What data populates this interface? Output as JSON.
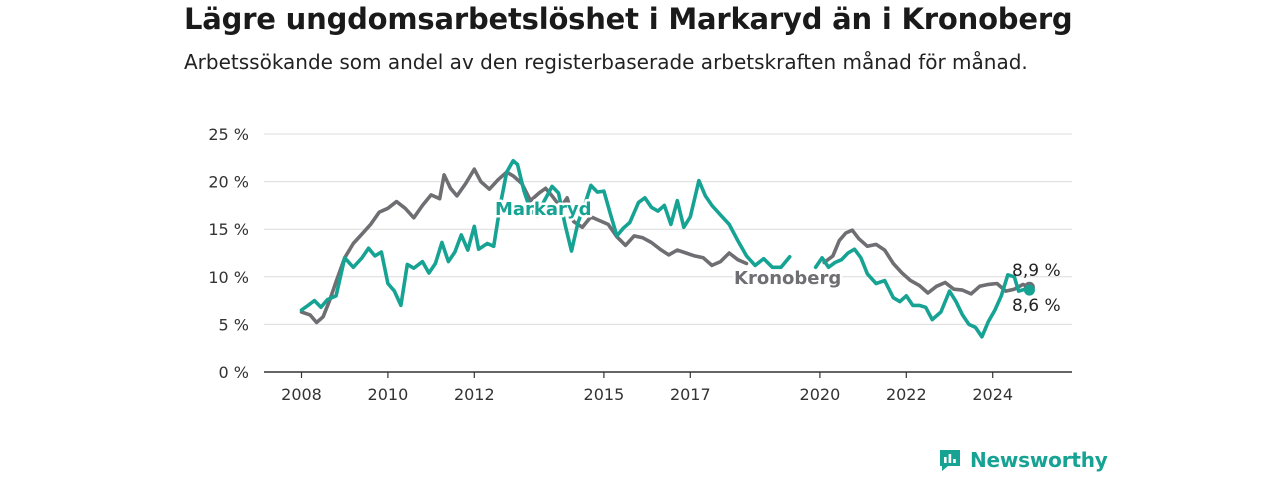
{
  "title": "Lägre ungdomsarbetslöshet i Markaryd än i Kronoberg",
  "subtitle": "Arbetssökande som andel av den registerbaserade arbetskraften månad för månad.",
  "brand": {
    "name": "Newsworthy",
    "icon": "newsworthy-logo-icon"
  },
  "colors": {
    "markaryd": "#16a393",
    "kronoberg": "#6e6e73",
    "grid": "#dcdcdc",
    "axis": "#333333"
  },
  "chart_data": {
    "type": "line",
    "title": "Lägre ungdomsarbetslöshet i Markaryd än i Kronoberg",
    "xlabel": "",
    "ylabel": "",
    "xlim": [
      2008,
      2025.4
    ],
    "ylim": [
      0,
      25
    ],
    "y_ticks": [
      0,
      5,
      10,
      15,
      20,
      25
    ],
    "y_tick_labels": [
      "0 %",
      "5 %",
      "10 %",
      "15 %",
      "20 %",
      "25 %"
    ],
    "x_ticks": [
      2008,
      2010,
      2012,
      2015,
      2017,
      2020,
      2022,
      2024
    ],
    "x_tick_labels": [
      "2008",
      "2010",
      "2012",
      "2015",
      "2017",
      "2020",
      "2022",
      "2024"
    ],
    "grid": true,
    "series": [
      {
        "name": "Kronoberg",
        "label_text": "Kronoberg",
        "end_label": "8,9 %",
        "points": [
          [
            2008.0,
            6.3
          ],
          [
            2008.2,
            6.0
          ],
          [
            2008.35,
            5.2
          ],
          [
            2008.5,
            5.8
          ],
          [
            2008.65,
            7.5
          ],
          [
            2008.8,
            9.5
          ],
          [
            2009.0,
            12.0
          ],
          [
            2009.2,
            13.5
          ],
          [
            2009.4,
            14.5
          ],
          [
            2009.6,
            15.5
          ],
          [
            2009.8,
            16.8
          ],
          [
            2010.0,
            17.2
          ],
          [
            2010.2,
            17.9
          ],
          [
            2010.4,
            17.2
          ],
          [
            2010.6,
            16.2
          ],
          [
            2010.8,
            17.5
          ],
          [
            2011.0,
            18.6
          ],
          [
            2011.2,
            18.2
          ],
          [
            2011.3,
            20.7
          ],
          [
            2011.45,
            19.3
          ],
          [
            2011.6,
            18.5
          ],
          [
            2011.8,
            19.8
          ],
          [
            2012.0,
            21.3
          ],
          [
            2012.15,
            20.0
          ],
          [
            2012.35,
            19.2
          ],
          [
            2012.55,
            20.2
          ],
          [
            2012.75,
            21.0
          ],
          [
            2012.9,
            20.6
          ],
          [
            2013.1,
            19.8
          ],
          [
            2013.3,
            18.0
          ],
          [
            2013.5,
            18.8
          ],
          [
            2013.65,
            19.3
          ],
          [
            2013.8,
            18.5
          ],
          [
            2014.0,
            17.3
          ],
          [
            2014.15,
            18.3
          ],
          [
            2014.3,
            15.8
          ],
          [
            2014.5,
            15.2
          ],
          [
            2014.7,
            16.3
          ],
          [
            2014.9,
            15.9
          ],
          [
            2015.1,
            15.5
          ],
          [
            2015.3,
            14.2
          ],
          [
            2015.5,
            13.3
          ],
          [
            2015.7,
            14.3
          ],
          [
            2015.9,
            14.1
          ],
          [
            2016.1,
            13.6
          ],
          [
            2016.3,
            12.9
          ],
          [
            2016.5,
            12.3
          ],
          [
            2016.7,
            12.8
          ],
          [
            2016.9,
            12.5
          ],
          [
            2017.1,
            12.2
          ],
          [
            2017.3,
            12.0
          ],
          [
            2017.5,
            11.2
          ],
          [
            2017.7,
            11.6
          ],
          [
            2017.9,
            12.5
          ],
          [
            2018.1,
            11.8
          ],
          [
            2018.3,
            11.4
          ],
          null,
          [
            2020.1,
            11.5
          ],
          [
            2020.3,
            12.2
          ],
          [
            2020.45,
            13.8
          ],
          [
            2020.6,
            14.6
          ],
          [
            2020.75,
            14.9
          ],
          [
            2020.9,
            14.0
          ],
          [
            2021.1,
            13.2
          ],
          [
            2021.3,
            13.4
          ],
          [
            2021.5,
            12.8
          ],
          [
            2021.7,
            11.4
          ],
          [
            2021.9,
            10.4
          ],
          [
            2022.1,
            9.6
          ],
          [
            2022.3,
            9.1
          ],
          [
            2022.5,
            8.3
          ],
          [
            2022.7,
            9.0
          ],
          [
            2022.9,
            9.4
          ],
          [
            2023.1,
            8.7
          ],
          [
            2023.3,
            8.6
          ],
          [
            2023.5,
            8.2
          ],
          [
            2023.7,
            9.0
          ],
          [
            2023.9,
            9.2
          ],
          [
            2024.1,
            9.3
          ],
          [
            2024.3,
            8.5
          ],
          [
            2024.5,
            8.7
          ],
          [
            2024.7,
            9.2
          ],
          [
            2024.85,
            8.9
          ]
        ]
      },
      {
        "name": "Markaryd",
        "label_text": "Markaryd",
        "end_label": "8,6 %",
        "points": [
          [
            2008.0,
            6.5
          ],
          [
            2008.15,
            7.0
          ],
          [
            2008.3,
            7.5
          ],
          [
            2008.45,
            6.8
          ],
          [
            2008.6,
            7.6
          ],
          [
            2008.8,
            8.0
          ],
          [
            2009.0,
            12.0
          ],
          [
            2009.2,
            11.0
          ],
          [
            2009.4,
            12.0
          ],
          [
            2009.55,
            13.0
          ],
          [
            2009.7,
            12.2
          ],
          [
            2009.85,
            12.6
          ],
          [
            2010.0,
            9.3
          ],
          [
            2010.15,
            8.5
          ],
          [
            2010.3,
            7.0
          ],
          [
            2010.45,
            11.3
          ],
          [
            2010.6,
            10.9
          ],
          [
            2010.8,
            11.6
          ],
          [
            2010.95,
            10.4
          ],
          [
            2011.1,
            11.4
          ],
          [
            2011.25,
            13.6
          ],
          [
            2011.4,
            11.6
          ],
          [
            2011.55,
            12.6
          ],
          [
            2011.7,
            14.4
          ],
          [
            2011.85,
            12.8
          ],
          [
            2012.0,
            15.3
          ],
          [
            2012.1,
            12.9
          ],
          [
            2012.3,
            13.5
          ],
          [
            2012.45,
            13.2
          ],
          [
            2012.6,
            17.5
          ],
          [
            2012.75,
            21.0
          ],
          [
            2012.9,
            22.2
          ],
          [
            2013.0,
            21.8
          ],
          [
            2013.15,
            19.0
          ],
          [
            2013.3,
            17.0
          ],
          [
            2013.45,
            16.4
          ],
          [
            2013.6,
            17.8
          ],
          [
            2013.8,
            19.5
          ],
          [
            2013.95,
            18.8
          ],
          [
            2014.1,
            15.5
          ],
          [
            2014.25,
            12.7
          ],
          [
            2014.4,
            15.7
          ],
          [
            2014.55,
            17.5
          ],
          [
            2014.7,
            19.6
          ],
          [
            2014.85,
            18.9
          ],
          [
            2015.0,
            19.0
          ],
          [
            2015.15,
            16.6
          ],
          [
            2015.3,
            14.3
          ],
          [
            2015.45,
            15.1
          ],
          [
            2015.6,
            15.7
          ],
          [
            2015.8,
            17.8
          ],
          [
            2015.95,
            18.3
          ],
          [
            2016.1,
            17.3
          ],
          [
            2016.25,
            16.9
          ],
          [
            2016.4,
            17.5
          ],
          [
            2016.55,
            15.5
          ],
          [
            2016.7,
            18.0
          ],
          [
            2016.85,
            15.2
          ],
          [
            2017.0,
            16.3
          ],
          [
            2017.2,
            20.1
          ],
          [
            2017.35,
            18.5
          ],
          [
            2017.5,
            17.5
          ],
          [
            2017.7,
            16.5
          ],
          [
            2017.9,
            15.5
          ],
          [
            2018.1,
            13.8
          ],
          [
            2018.3,
            12.2
          ],
          [
            2018.5,
            11.2
          ],
          [
            2018.7,
            11.9
          ],
          [
            2018.9,
            11.0
          ],
          [
            2019.1,
            11.0
          ],
          [
            2019.3,
            12.1
          ],
          null,
          [
            2019.9,
            11.0
          ],
          [
            2020.05,
            12.0
          ],
          [
            2020.2,
            11.0
          ],
          [
            2020.35,
            11.5
          ],
          [
            2020.5,
            11.8
          ],
          [
            2020.65,
            12.5
          ],
          [
            2020.8,
            12.9
          ],
          [
            2020.95,
            12.0
          ],
          [
            2021.1,
            10.3
          ],
          [
            2021.3,
            9.3
          ],
          [
            2021.5,
            9.6
          ],
          [
            2021.7,
            7.8
          ],
          [
            2021.85,
            7.4
          ],
          [
            2022.0,
            8.0
          ],
          [
            2022.15,
            7.0
          ],
          [
            2022.3,
            7.0
          ],
          [
            2022.45,
            6.8
          ],
          [
            2022.6,
            5.5
          ],
          [
            2022.8,
            6.3
          ],
          [
            2023.0,
            8.5
          ],
          [
            2023.15,
            7.4
          ],
          [
            2023.3,
            6.0
          ],
          [
            2023.45,
            5.0
          ],
          [
            2023.6,
            4.7
          ],
          [
            2023.75,
            3.7
          ],
          [
            2023.9,
            5.3
          ],
          [
            2024.05,
            6.5
          ],
          [
            2024.2,
            8.0
          ],
          [
            2024.35,
            10.2
          ],
          [
            2024.5,
            10.0
          ],
          [
            2024.6,
            8.5
          ],
          [
            2024.75,
            8.7
          ],
          [
            2024.85,
            8.6
          ]
        ]
      }
    ]
  }
}
